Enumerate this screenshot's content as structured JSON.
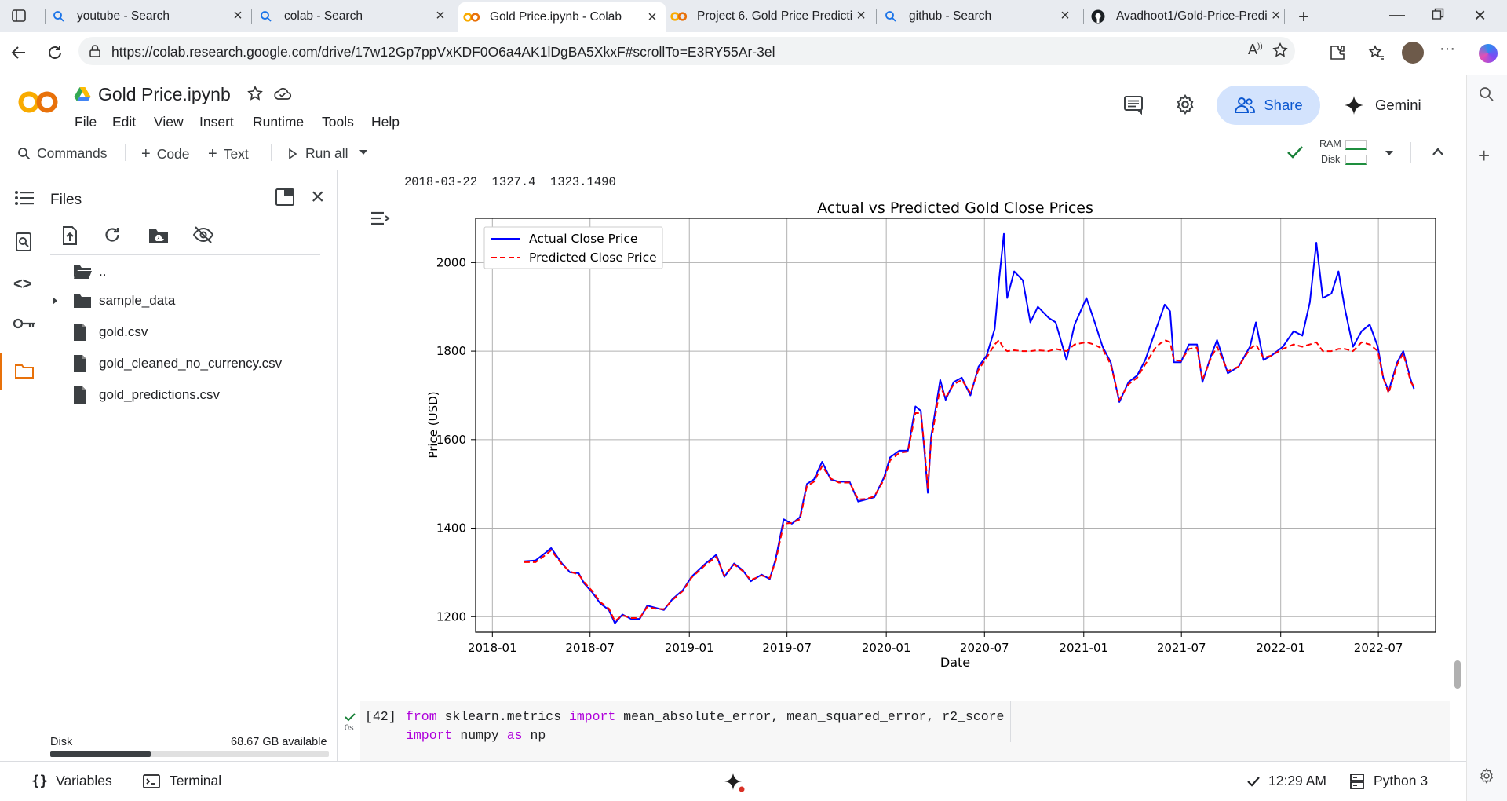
{
  "browser": {
    "tabs": [
      {
        "title": "youtube - Search",
        "icon": "search-icon"
      },
      {
        "title": "colab - Search",
        "icon": "search-icon"
      },
      {
        "title": "Gold Price.ipynb - Colab",
        "icon": "colab-icon"
      },
      {
        "title": "Project 6. Gold Price Predicti",
        "icon": "colab-icon"
      },
      {
        "title": "github - Search",
        "icon": "search-icon"
      },
      {
        "title": "Avadhoot1/Gold-Price-Predi",
        "icon": "github-icon"
      }
    ],
    "url": "https://colab.research.google.com/drive/17w12Gp7ppVxKDF0O6a4AK1lDgBA5XkxF#scrollTo=E3RY55Ar-3el"
  },
  "notebook": {
    "title": "Gold Price.ipynb",
    "menu": [
      "File",
      "Edit",
      "View",
      "Insert",
      "Runtime",
      "Tools",
      "Help"
    ],
    "share_label": "Share",
    "gemini_label": "Gemini"
  },
  "toolbar": {
    "commands": "Commands",
    "code": "Code",
    "text": "Text",
    "run_all": "Run all",
    "ram": "RAM",
    "disk": "Disk"
  },
  "files": {
    "title": "Files",
    "items": [
      "..",
      "sample_data",
      "gold.csv",
      "gold_cleaned_no_currency.csv",
      "gold_predictions.csv"
    ],
    "disk_label": "Disk",
    "disk_available": "68.67 GB available",
    "disk_used_fraction": 0.36
  },
  "output": {
    "text_line": "2018-03-22  1327.4  1323.1490"
  },
  "cell": {
    "exec_count": "[42]",
    "exec_time": "0s",
    "line1": [
      {
        "t": "from",
        "k": true
      },
      {
        "t": " sklearn.metrics ",
        "k": false
      },
      {
        "t": "import",
        "k": true
      },
      {
        "t": " mean_absolute_error, mean_squared_error, r2_score",
        "k": false
      }
    ],
    "line2": [
      {
        "t": "import",
        "k": true
      },
      {
        "t": " numpy ",
        "k": false
      },
      {
        "t": "as",
        "k": true
      },
      {
        "t": " np",
        "k": false
      }
    ]
  },
  "status": {
    "variables": "Variables",
    "terminal": "Terminal",
    "time": "12:29 AM",
    "kernel": "Python 3"
  },
  "colors": {
    "actual": "#0000ff",
    "predicted": "#ff0000",
    "accent": "#0b57d0"
  },
  "chart_data": {
    "type": "line",
    "title": "Actual vs Predicted Gold Close Prices",
    "xlabel": "Date",
    "ylabel": "Price (USD)",
    "xticks": [
      "2018-01",
      "2018-07",
      "2019-01",
      "2019-07",
      "2020-01",
      "2020-07",
      "2021-01",
      "2021-07",
      "2022-01",
      "2022-07"
    ],
    "xlim": [
      "2017-12-01",
      "2022-10-15"
    ],
    "yticks": [
      1200,
      1400,
      1600,
      1800,
      2000
    ],
    "ylim": [
      1165,
      2100
    ],
    "grid": true,
    "legend": "top-left",
    "series": [
      {
        "name": "Actual Close Price",
        "style": "solid",
        "points": [
          [
            "2018-03-01",
            1325
          ],
          [
            "2018-03-22",
            1327
          ],
          [
            "2018-04-10",
            1345
          ],
          [
            "2018-04-20",
            1355
          ],
          [
            "2018-05-10",
            1320
          ],
          [
            "2018-05-25",
            1300
          ],
          [
            "2018-06-10",
            1298
          ],
          [
            "2018-06-20",
            1275
          ],
          [
            "2018-07-05",
            1255
          ],
          [
            "2018-07-20",
            1230
          ],
          [
            "2018-08-05",
            1215
          ],
          [
            "2018-08-16",
            1185
          ],
          [
            "2018-08-30",
            1205
          ],
          [
            "2018-09-15",
            1195
          ],
          [
            "2018-10-01",
            1195
          ],
          [
            "2018-10-15",
            1225
          ],
          [
            "2018-10-30",
            1220
          ],
          [
            "2018-11-15",
            1215
          ],
          [
            "2018-12-01",
            1240
          ],
          [
            "2018-12-20",
            1260
          ],
          [
            "2019-01-05",
            1290
          ],
          [
            "2019-01-31",
            1320
          ],
          [
            "2019-02-20",
            1340
          ],
          [
            "2019-03-07",
            1290
          ],
          [
            "2019-03-25",
            1320
          ],
          [
            "2019-04-10",
            1305
          ],
          [
            "2019-04-25",
            1280
          ],
          [
            "2019-05-15",
            1295
          ],
          [
            "2019-05-30",
            1285
          ],
          [
            "2019-06-10",
            1330
          ],
          [
            "2019-06-25",
            1420
          ],
          [
            "2019-07-10",
            1410
          ],
          [
            "2019-07-25",
            1425
          ],
          [
            "2019-08-07",
            1500
          ],
          [
            "2019-08-20",
            1510
          ],
          [
            "2019-09-04",
            1550
          ],
          [
            "2019-09-20",
            1510
          ],
          [
            "2019-10-05",
            1505
          ],
          [
            "2019-10-25",
            1505
          ],
          [
            "2019-11-10",
            1460
          ],
          [
            "2019-11-25",
            1465
          ],
          [
            "2019-12-10",
            1470
          ],
          [
            "2019-12-28",
            1515
          ],
          [
            "2020-01-08",
            1560
          ],
          [
            "2020-01-25",
            1575
          ],
          [
            "2020-02-10",
            1575
          ],
          [
            "2020-02-24",
            1675
          ],
          [
            "2020-03-05",
            1665
          ],
          [
            "2020-03-12",
            1570
          ],
          [
            "2020-03-18",
            1480
          ],
          [
            "2020-03-24",
            1605
          ],
          [
            "2020-04-10",
            1735
          ],
          [
            "2020-04-20",
            1690
          ],
          [
            "2020-05-05",
            1730
          ],
          [
            "2020-05-20",
            1740
          ],
          [
            "2020-06-05",
            1700
          ],
          [
            "2020-06-20",
            1765
          ],
          [
            "2020-07-05",
            1790
          ],
          [
            "2020-07-20",
            1850
          ],
          [
            "2020-07-28",
            1960
          ],
          [
            "2020-08-06",
            2065
          ],
          [
            "2020-08-12",
            1920
          ],
          [
            "2020-08-25",
            1980
          ],
          [
            "2020-09-10",
            1960
          ],
          [
            "2020-09-24",
            1865
          ],
          [
            "2020-10-08",
            1900
          ],
          [
            "2020-10-28",
            1875
          ],
          [
            "2020-11-10",
            1865
          ],
          [
            "2020-11-30",
            1780
          ],
          [
            "2020-12-15",
            1860
          ],
          [
            "2021-01-06",
            1920
          ],
          [
            "2021-01-20",
            1870
          ],
          [
            "2021-02-05",
            1810
          ],
          [
            "2021-02-20",
            1775
          ],
          [
            "2021-03-08",
            1685
          ],
          [
            "2021-03-25",
            1730
          ],
          [
            "2021-04-10",
            1745
          ],
          [
            "2021-04-25",
            1780
          ],
          [
            "2021-05-15",
            1850
          ],
          [
            "2021-05-31",
            1905
          ],
          [
            "2021-06-10",
            1890
          ],
          [
            "2021-06-17",
            1775
          ],
          [
            "2021-06-30",
            1775
          ],
          [
            "2021-07-15",
            1815
          ],
          [
            "2021-07-30",
            1815
          ],
          [
            "2021-08-09",
            1730
          ],
          [
            "2021-08-25",
            1790
          ],
          [
            "2021-09-05",
            1825
          ],
          [
            "2021-09-25",
            1750
          ],
          [
            "2021-10-15",
            1765
          ],
          [
            "2021-11-05",
            1810
          ],
          [
            "2021-11-16",
            1865
          ],
          [
            "2021-11-30",
            1780
          ],
          [
            "2021-12-15",
            1790
          ],
          [
            "2022-01-05",
            1810
          ],
          [
            "2022-01-25",
            1845
          ],
          [
            "2022-02-10",
            1835
          ],
          [
            "2022-02-24",
            1910
          ],
          [
            "2022-03-08",
            2045
          ],
          [
            "2022-03-20",
            1920
          ],
          [
            "2022-04-05",
            1930
          ],
          [
            "2022-04-18",
            1980
          ],
          [
            "2022-04-30",
            1895
          ],
          [
            "2022-05-15",
            1810
          ],
          [
            "2022-05-31",
            1845
          ],
          [
            "2022-06-15",
            1860
          ],
          [
            "2022-06-30",
            1810
          ],
          [
            "2022-07-10",
            1740
          ],
          [
            "2022-07-20",
            1710
          ],
          [
            "2022-08-05",
            1775
          ],
          [
            "2022-08-16",
            1800
          ],
          [
            "2022-08-30",
            1735
          ],
          [
            "2022-09-05",
            1715
          ]
        ]
      },
      {
        "name": "Predicted Close Price",
        "style": "dashed",
        "points": [
          [
            "2018-03-01",
            1323
          ],
          [
            "2018-03-22",
            1323
          ],
          [
            "2018-04-10",
            1340
          ],
          [
            "2018-04-20",
            1350
          ],
          [
            "2018-05-10",
            1318
          ],
          [
            "2018-05-25",
            1302
          ],
          [
            "2018-06-10",
            1295
          ],
          [
            "2018-06-20",
            1278
          ],
          [
            "2018-07-05",
            1258
          ],
          [
            "2018-07-20",
            1233
          ],
          [
            "2018-08-05",
            1218
          ],
          [
            "2018-08-16",
            1190
          ],
          [
            "2018-08-30",
            1203
          ],
          [
            "2018-09-15",
            1197
          ],
          [
            "2018-10-01",
            1197
          ],
          [
            "2018-10-15",
            1222
          ],
          [
            "2018-10-30",
            1218
          ],
          [
            "2018-11-15",
            1217
          ],
          [
            "2018-12-01",
            1238
          ],
          [
            "2018-12-20",
            1258
          ],
          [
            "2019-01-05",
            1288
          ],
          [
            "2019-01-31",
            1317
          ],
          [
            "2019-02-20",
            1335
          ],
          [
            "2019-03-07",
            1293
          ],
          [
            "2019-03-25",
            1318
          ],
          [
            "2019-04-10",
            1303
          ],
          [
            "2019-04-25",
            1283
          ],
          [
            "2019-05-15",
            1293
          ],
          [
            "2019-05-30",
            1287
          ],
          [
            "2019-06-10",
            1325
          ],
          [
            "2019-06-25",
            1410
          ],
          [
            "2019-07-10",
            1412
          ],
          [
            "2019-07-25",
            1420
          ],
          [
            "2019-08-07",
            1495
          ],
          [
            "2019-08-20",
            1505
          ],
          [
            "2019-09-04",
            1540
          ],
          [
            "2019-09-20",
            1512
          ],
          [
            "2019-10-05",
            1503
          ],
          [
            "2019-10-25",
            1503
          ],
          [
            "2019-11-10",
            1465
          ],
          [
            "2019-11-25",
            1466
          ],
          [
            "2019-12-10",
            1472
          ],
          [
            "2019-12-28",
            1510
          ],
          [
            "2020-01-08",
            1553
          ],
          [
            "2020-01-25",
            1570
          ],
          [
            "2020-02-10",
            1573
          ],
          [
            "2020-02-24",
            1660
          ],
          [
            "2020-03-05",
            1660
          ],
          [
            "2020-03-12",
            1580
          ],
          [
            "2020-03-18",
            1490
          ],
          [
            "2020-03-24",
            1595
          ],
          [
            "2020-04-10",
            1720
          ],
          [
            "2020-04-20",
            1695
          ],
          [
            "2020-05-05",
            1725
          ],
          [
            "2020-05-20",
            1735
          ],
          [
            "2020-06-05",
            1705
          ],
          [
            "2020-06-20",
            1758
          ],
          [
            "2020-07-05",
            1785
          ],
          [
            "2020-07-20",
            1815
          ],
          [
            "2020-07-28",
            1825
          ],
          [
            "2020-08-06",
            1805
          ],
          [
            "2020-08-12",
            1800
          ],
          [
            "2020-08-25",
            1802
          ],
          [
            "2020-09-10",
            1800
          ],
          [
            "2020-09-24",
            1800
          ],
          [
            "2020-10-08",
            1802
          ],
          [
            "2020-10-28",
            1800
          ],
          [
            "2020-11-10",
            1805
          ],
          [
            "2020-11-30",
            1800
          ],
          [
            "2020-12-15",
            1815
          ],
          [
            "2021-01-06",
            1820
          ],
          [
            "2021-01-20",
            1815
          ],
          [
            "2021-02-05",
            1805
          ],
          [
            "2021-02-20",
            1770
          ],
          [
            "2021-03-08",
            1690
          ],
          [
            "2021-03-25",
            1725
          ],
          [
            "2021-04-10",
            1740
          ],
          [
            "2021-04-25",
            1770
          ],
          [
            "2021-05-15",
            1810
          ],
          [
            "2021-05-31",
            1825
          ],
          [
            "2021-06-10",
            1820
          ],
          [
            "2021-06-17",
            1780
          ],
          [
            "2021-06-30",
            1778
          ],
          [
            "2021-07-15",
            1805
          ],
          [
            "2021-07-30",
            1808
          ],
          [
            "2021-08-09",
            1735
          ],
          [
            "2021-08-25",
            1785
          ],
          [
            "2021-09-05",
            1810
          ],
          [
            "2021-09-25",
            1755
          ],
          [
            "2021-10-15",
            1765
          ],
          [
            "2021-11-05",
            1805
          ],
          [
            "2021-11-16",
            1815
          ],
          [
            "2021-11-30",
            1785
          ],
          [
            "2021-12-15",
            1790
          ],
          [
            "2022-01-05",
            1805
          ],
          [
            "2022-01-25",
            1815
          ],
          [
            "2022-02-10",
            1810
          ],
          [
            "2022-02-24",
            1815
          ],
          [
            "2022-03-08",
            1820
          ],
          [
            "2022-03-20",
            1800
          ],
          [
            "2022-04-05",
            1800
          ],
          [
            "2022-04-18",
            1805
          ],
          [
            "2022-04-30",
            1805
          ],
          [
            "2022-05-15",
            1800
          ],
          [
            "2022-05-31",
            1820
          ],
          [
            "2022-06-15",
            1815
          ],
          [
            "2022-06-30",
            1800
          ],
          [
            "2022-07-10",
            1740
          ],
          [
            "2022-07-20",
            1705
          ],
          [
            "2022-08-05",
            1770
          ],
          [
            "2022-08-16",
            1795
          ],
          [
            "2022-08-30",
            1730
          ],
          [
            "2022-09-05",
            1720
          ]
        ]
      }
    ]
  }
}
